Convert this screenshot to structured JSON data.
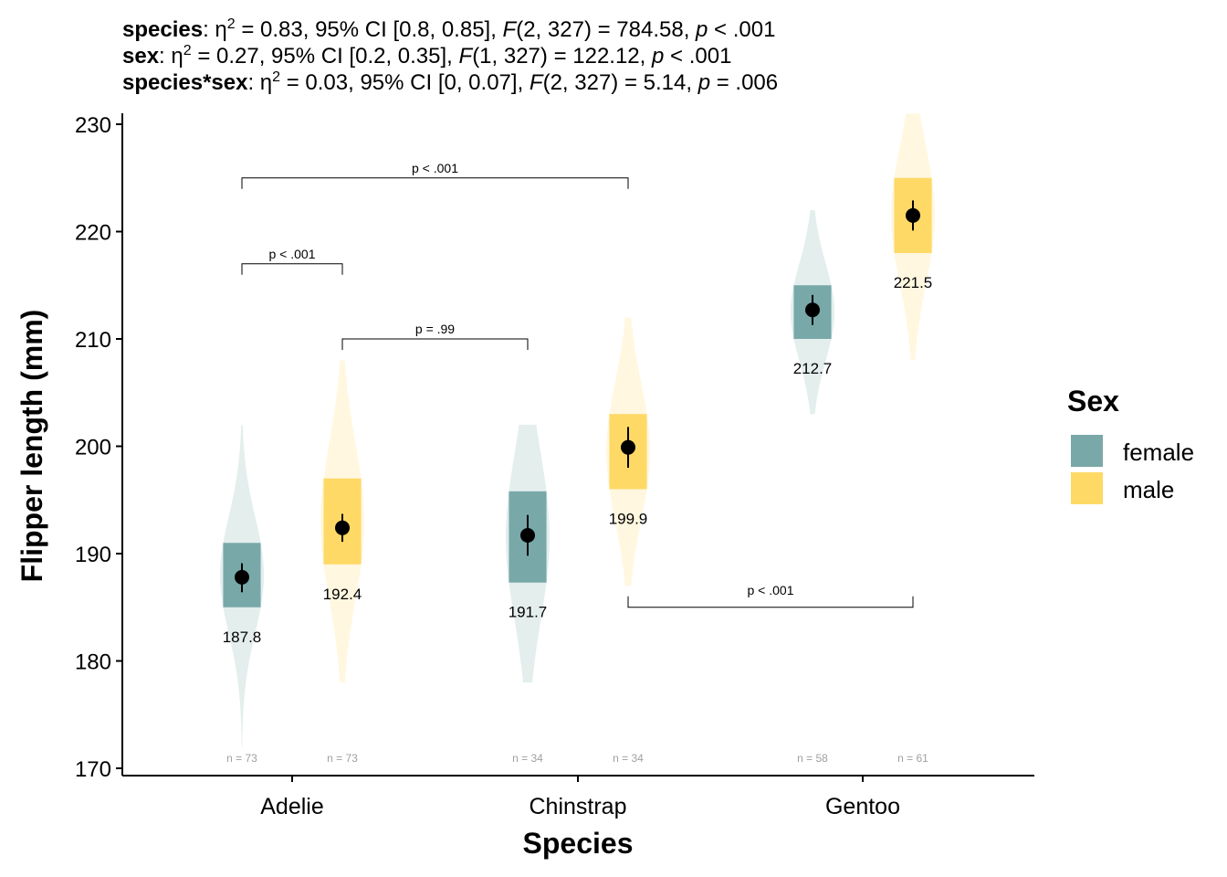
{
  "subtitle": {
    "lines": [
      {
        "term": "species",
        "sep": ": ",
        "eta": "η",
        "sq": "2",
        "t1": " = 0.83, 95% CI [0.8, 0.85], ",
        "F": "F",
        "t2": "(2, 327) = 784.58, ",
        "p": "p",
        "t3": " < .001"
      },
      {
        "term": "sex",
        "sep": ": ",
        "eta": "η",
        "sq": "2",
        "t1": " = 0.27, 95% CI [0.2, 0.35], ",
        "F": "F",
        "t2": "(1, 327) = 122.12, ",
        "p": "p",
        "t3": " < .001"
      },
      {
        "term": "species*sex",
        "sep": ": ",
        "eta": "η",
        "sq": "2",
        "t1": " = 0.03, 95% CI [0, 0.07], ",
        "F": "F",
        "t2": "(2, 327) = 5.14, ",
        "p": "p",
        "t3": " = .006"
      }
    ]
  },
  "chart_data": {
    "type": "violin",
    "xlabel": "Species",
    "ylabel": "Flipper length (mm)",
    "ylim": [
      170,
      231
    ],
    "yticks": [
      170,
      180,
      190,
      200,
      210,
      220,
      230
    ],
    "categories": [
      "Adelie",
      "Chinstrap",
      "Gentoo"
    ],
    "legend": {
      "title": "Sex",
      "position": "right",
      "items": [
        {
          "label": "female",
          "color": "#79a8a9"
        },
        {
          "label": "male",
          "color": "#ffd966"
        }
      ]
    },
    "series": [
      {
        "name": "female",
        "color": "#79a8a9",
        "groups": [
          {
            "category": "Adelie",
            "min": 172,
            "max": 202,
            "q1": 185,
            "q3": 191,
            "mean": 187.8,
            "ci": [
              186.4,
              189.1
            ],
            "label": "187.8",
            "n_label": "n = 73"
          },
          {
            "category": "Chinstrap",
            "min": 178,
            "max": 202,
            "q1": 187.3,
            "q3": 195.8,
            "mean": 191.7,
            "ci": [
              189.8,
              193.6
            ],
            "label": "191.7",
            "n_label": "n = 34"
          },
          {
            "category": "Gentoo",
            "min": 203,
            "max": 222,
            "q1": 210,
            "q3": 215,
            "mean": 212.7,
            "ci": [
              211.3,
              214.1
            ],
            "label": "212.7",
            "n_label": "n = 58"
          }
        ]
      },
      {
        "name": "male",
        "color": "#ffd966",
        "groups": [
          {
            "category": "Adelie",
            "min": 178,
            "max": 208,
            "q1": 189,
            "q3": 197,
            "mean": 192.4,
            "ci": [
              191.1,
              193.7
            ],
            "label": "192.4",
            "n_label": "n = 73"
          },
          {
            "category": "Chinstrap",
            "min": 187,
            "max": 212,
            "q1": 196,
            "q3": 203,
            "mean": 199.9,
            "ci": [
              198.0,
              201.8
            ],
            "label": "199.9",
            "n_label": "n = 34"
          },
          {
            "category": "Gentoo",
            "min": 208,
            "max": 231,
            "q1": 218,
            "q3": 225,
            "mean": 221.5,
            "ci": [
              220.1,
              222.9
            ],
            "label": "221.5",
            "n_label": "n = 61"
          }
        ]
      }
    ],
    "comparisons": [
      {
        "from": "Adelie female",
        "to": "Adelie male",
        "y": 217,
        "label": "p < .001"
      },
      {
        "from": "Adelie female",
        "to": "Chinstrap male",
        "y": 225,
        "label": "p < .001"
      },
      {
        "from": "Adelie male",
        "to": "Chinstrap female",
        "y": 210,
        "label": "p = .99"
      },
      {
        "from": "Chinstrap male",
        "to": "Gentoo male",
        "y": 185,
        "label": "p < .001",
        "direction": "down"
      }
    ]
  }
}
